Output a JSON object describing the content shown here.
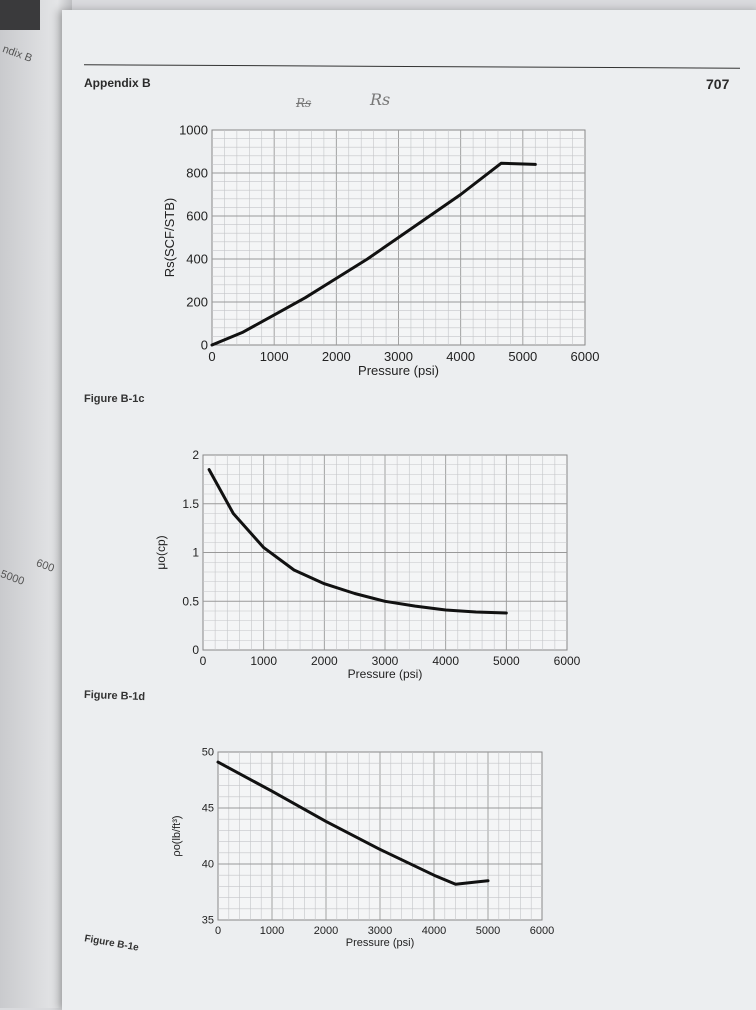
{
  "header": {
    "section": "Appendix B",
    "page_number": "707"
  },
  "handwritten_notes": [
    "Rs",
    "Rs"
  ],
  "left_page_fragments": [
    "ndix B",
    "5000",
    "600"
  ],
  "chart_data": [
    {
      "type": "line",
      "caption": "Figure B-1c",
      "xlabel": "Pressure (psi)",
      "ylabel": "Rs(SCF/STB)",
      "xlim": [
        0,
        6000
      ],
      "ylim": [
        0,
        1000
      ],
      "xticks": [
        "0",
        "1000",
        "2000",
        "3000",
        "4000",
        "5000",
        "6000"
      ],
      "yticks": [
        "0",
        "200",
        "400",
        "600",
        "800",
        "1000"
      ],
      "grid": true,
      "x": [
        0,
        500,
        1000,
        1500,
        2000,
        2500,
        3000,
        3500,
        4000,
        4650,
        5200
      ],
      "y": [
        0,
        60,
        140,
        220,
        310,
        400,
        500,
        600,
        700,
        845,
        840
      ]
    },
    {
      "type": "line",
      "caption": "Figure B-1d",
      "xlabel": "Pressure (psi)",
      "ylabel": "μo(cp)",
      "xlim": [
        0,
        6000
      ],
      "ylim": [
        0,
        2
      ],
      "xticks": [
        "0",
        "1000",
        "2000",
        "3000",
        "4000",
        "5000",
        "6000"
      ],
      "yticks": [
        "0",
        "0.5",
        "1",
        "1.5",
        "2"
      ],
      "grid": true,
      "x": [
        100,
        500,
        1000,
        1500,
        2000,
        2500,
        3000,
        3500,
        4000,
        4500,
        5000
      ],
      "y": [
        1.85,
        1.4,
        1.05,
        0.82,
        0.68,
        0.58,
        0.5,
        0.45,
        0.41,
        0.39,
        0.38
      ]
    },
    {
      "type": "line",
      "caption": "Figure B-1e",
      "xlabel": "Pressure (psi)",
      "ylabel": "ρo(lb/ft³)",
      "xlim": [
        0,
        6000
      ],
      "ylim": [
        35,
        50
      ],
      "xticks": [
        "0",
        "1000",
        "2000",
        "3000",
        "4000",
        "5000",
        "6000"
      ],
      "yticks": [
        "35",
        "40",
        "45",
        "50"
      ],
      "grid": true,
      "x": [
        0,
        1000,
        2000,
        3000,
        4000,
        4400,
        4800,
        5000
      ],
      "y": [
        49.1,
        46.5,
        43.8,
        41.3,
        39.0,
        38.2,
        38.4,
        38.5
      ]
    }
  ]
}
